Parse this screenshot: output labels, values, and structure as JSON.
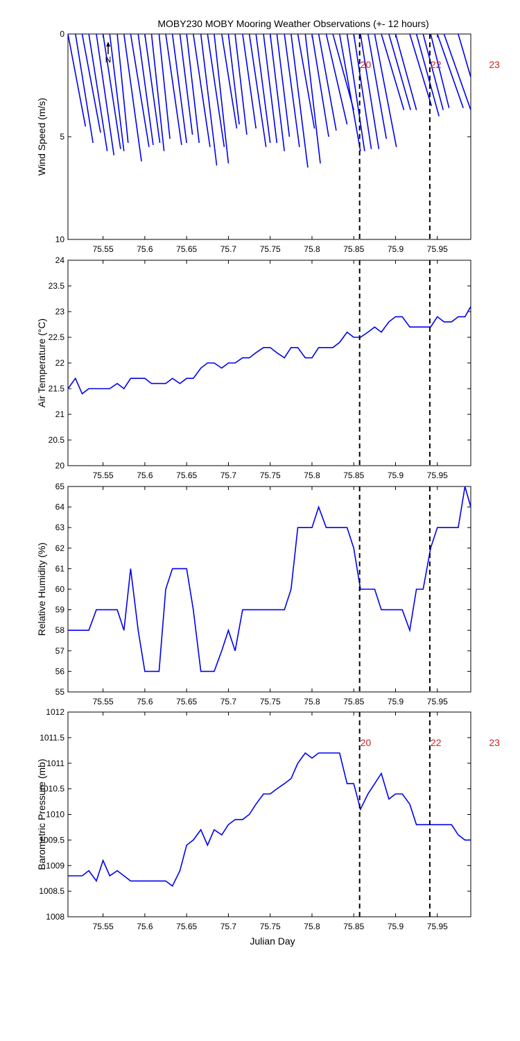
{
  "title": "MOBY230 MOBY Mooring Weather Observations (+- 12 hours)",
  "x_axis": {
    "label": "Julian Day",
    "range": [
      75.508,
      75.99
    ],
    "ticks": [
      75.55,
      75.6,
      75.65,
      75.7,
      75.75,
      75.8,
      75.85,
      75.9,
      75.95
    ],
    "tick_labels": [
      "75.55",
      "75.6",
      "75.65",
      "75.7",
      "75.75",
      "75.8",
      "75.85",
      "75.9",
      "75.95"
    ]
  },
  "colors": {
    "series": "#0000ee",
    "marker_text": "#cc2222",
    "axis": "#000000"
  },
  "markers": {
    "lines_x": [
      75.857,
      75.941
    ],
    "top_labels": [
      {
        "text": "20",
        "x": 75.857
      },
      {
        "text": "22",
        "x": 75.941
      },
      {
        "text": "23",
        "x": 76.011
      }
    ],
    "bottom_labels": [
      {
        "text": "20",
        "x": 75.857
      },
      {
        "text": "22",
        "x": 75.941
      },
      {
        "text": "23",
        "x": 76.011
      }
    ]
  },
  "north_arrow_label": "N",
  "chart_data": [
    {
      "id": "wind",
      "type": "vector",
      "ylabel": "Wind Speed (m/s)",
      "ylim": [
        10,
        0
      ],
      "yticks": [
        0,
        5,
        10
      ],
      "note": "wind sticks from each observation time at speed 0; end point gives direction and speed",
      "vectors": [
        {
          "x": 75.508,
          "x_end": 75.529,
          "speed": 4.5
        },
        {
          "x": 75.517,
          "x_end": 75.538,
          "speed": 5.3
        },
        {
          "x": 75.525,
          "x_end": 75.547,
          "speed": 4.8
        },
        {
          "x": 75.533,
          "x_end": 75.555,
          "speed": 5.7
        },
        {
          "x": 75.542,
          "x_end": 75.563,
          "speed": 5.9
        },
        {
          "x": 75.55,
          "x_end": 75.571,
          "speed": 5.6
        },
        {
          "x": 75.558,
          "x_end": 75.575,
          "speed": 5.7
        },
        {
          "x": 75.567,
          "x_end": 75.58,
          "speed": 5.3
        },
        {
          "x": 75.575,
          "x_end": 75.596,
          "speed": 6.2
        },
        {
          "x": 75.583,
          "x_end": 75.605,
          "speed": 5.5
        },
        {
          "x": 75.592,
          "x_end": 75.61,
          "speed": 5.4
        },
        {
          "x": 75.6,
          "x_end": 75.618,
          "speed": 5.3
        },
        {
          "x": 75.608,
          "x_end": 75.623,
          "speed": 5.7
        },
        {
          "x": 75.617,
          "x_end": 75.63,
          "speed": 5.1
        },
        {
          "x": 75.625,
          "x_end": 75.644,
          "speed": 5.4
        },
        {
          "x": 75.633,
          "x_end": 75.65,
          "speed": 5.3
        },
        {
          "x": 75.642,
          "x_end": 75.657,
          "speed": 4.9
        },
        {
          "x": 75.65,
          "x_end": 75.665,
          "speed": 5.3
        },
        {
          "x": 75.658,
          "x_end": 75.678,
          "speed": 5.5
        },
        {
          "x": 75.667,
          "x_end": 75.686,
          "speed": 6.4
        },
        {
          "x": 75.675,
          "x_end": 75.695,
          "speed": 5.5
        },
        {
          "x": 75.683,
          "x_end": 75.7,
          "speed": 6.3
        },
        {
          "x": 75.692,
          "x_end": 75.71,
          "speed": 4.6
        },
        {
          "x": 75.7,
          "x_end": 75.713,
          "speed": 4.4
        },
        {
          "x": 75.708,
          "x_end": 75.722,
          "speed": 4.9
        },
        {
          "x": 75.717,
          "x_end": 75.733,
          "speed": 4.6
        },
        {
          "x": 75.725,
          "x_end": 75.745,
          "speed": 5.5
        },
        {
          "x": 75.733,
          "x_end": 75.75,
          "speed": 5.3
        },
        {
          "x": 75.742,
          "x_end": 75.758,
          "speed": 5.3
        },
        {
          "x": 75.75,
          "x_end": 75.767,
          "speed": 5.7
        },
        {
          "x": 75.758,
          "x_end": 75.773,
          "speed": 5.0
        },
        {
          "x": 75.767,
          "x_end": 75.785,
          "speed": 5.5
        },
        {
          "x": 75.775,
          "x_end": 75.795,
          "speed": 6.5
        },
        {
          "x": 75.783,
          "x_end": 75.803,
          "speed": 4.6
        },
        {
          "x": 75.792,
          "x_end": 75.81,
          "speed": 6.3
        },
        {
          "x": 75.8,
          "x_end": 75.82,
          "speed": 5.0
        },
        {
          "x": 75.808,
          "x_end": 75.829,
          "speed": 4.7
        },
        {
          "x": 75.817,
          "x_end": 75.842,
          "speed": 4.4
        },
        {
          "x": 75.825,
          "x_end": 75.85,
          "speed": 3.7
        },
        {
          "x": 75.833,
          "x_end": 75.858,
          "speed": 5.7
        },
        {
          "x": 75.842,
          "x_end": 75.863,
          "speed": 5.7
        },
        {
          "x": 75.85,
          "x_end": 75.871,
          "speed": 5.6
        },
        {
          "x": 75.858,
          "x_end": 75.88,
          "speed": 5.6
        },
        {
          "x": 75.867,
          "x_end": 75.889,
          "speed": 5.1
        },
        {
          "x": 75.875,
          "x_end": 75.901,
          "speed": 5.5
        },
        {
          "x": 75.883,
          "x_end": 75.91,
          "speed": 3.7
        },
        {
          "x": 75.892,
          "x_end": 75.918,
          "speed": 3.7
        },
        {
          "x": 75.9,
          "x_end": 75.925,
          "speed": 3.7
        },
        {
          "x": 75.917,
          "x_end": 75.943,
          "speed": 3.5
        },
        {
          "x": 75.925,
          "x_end": 75.952,
          "speed": 4.0
        },
        {
          "x": 75.933,
          "x_end": 75.957,
          "speed": 3.7
        },
        {
          "x": 75.942,
          "x_end": 75.964,
          "speed": 3.6
        },
        {
          "x": 75.95,
          "x_end": 75.981,
          "speed": 3.6
        },
        {
          "x": 75.958,
          "x_end": 75.99,
          "speed": 3.7
        },
        {
          "x": 75.975,
          "x_end": 75.99,
          "speed": 2.1
        }
      ]
    },
    {
      "id": "air_temperature",
      "type": "line",
      "ylabel": "Air Temperature (°C)",
      "ylim": [
        20,
        24
      ],
      "yticks": [
        20,
        20.5,
        21,
        21.5,
        22,
        22.5,
        23,
        23.5,
        24
      ],
      "x": [
        75.508,
        75.517,
        75.525,
        75.533,
        75.542,
        75.55,
        75.558,
        75.567,
        75.575,
        75.583,
        75.592,
        75.6,
        75.608,
        75.617,
        75.625,
        75.633,
        75.642,
        75.65,
        75.658,
        75.667,
        75.675,
        75.683,
        75.692,
        75.7,
        75.708,
        75.717,
        75.725,
        75.733,
        75.742,
        75.75,
        75.758,
        75.767,
        75.775,
        75.783,
        75.792,
        75.8,
        75.808,
        75.817,
        75.825,
        75.833,
        75.842,
        75.85,
        75.858,
        75.867,
        75.875,
        75.883,
        75.892,
        75.9,
        75.908,
        75.917,
        75.925,
        75.933,
        75.942,
        75.95,
        75.958,
        75.967,
        75.975,
        75.983,
        75.99
      ],
      "values": [
        21.5,
        21.7,
        21.4,
        21.5,
        21.5,
        21.5,
        21.5,
        21.6,
        21.5,
        21.7,
        21.7,
        21.7,
        21.6,
        21.6,
        21.6,
        21.7,
        21.6,
        21.7,
        21.7,
        21.9,
        22.0,
        22.0,
        21.9,
        22.0,
        22.0,
        22.1,
        22.1,
        22.2,
        22.3,
        22.3,
        22.2,
        22.1,
        22.3,
        22.3,
        22.1,
        22.1,
        22.3,
        22.3,
        22.3,
        22.4,
        22.6,
        22.5,
        22.5,
        22.6,
        22.7,
        22.6,
        22.8,
        22.9,
        22.9,
        22.7,
        22.7,
        22.7,
        22.7,
        22.9,
        22.8,
        22.8,
        22.9,
        22.9,
        23.1
      ]
    },
    {
      "id": "relative_humidity",
      "type": "line",
      "ylabel": "Relative Humidity (%)",
      "ylim": [
        55,
        65
      ],
      "yticks": [
        55,
        56,
        57,
        58,
        59,
        60,
        61,
        62,
        63,
        64,
        65
      ],
      "x": [
        75.508,
        75.517,
        75.525,
        75.533,
        75.542,
        75.55,
        75.558,
        75.567,
        75.575,
        75.583,
        75.592,
        75.6,
        75.608,
        75.617,
        75.625,
        75.633,
        75.642,
        75.65,
        75.658,
        75.667,
        75.675,
        75.683,
        75.692,
        75.7,
        75.708,
        75.717,
        75.725,
        75.733,
        75.742,
        75.75,
        75.758,
        75.767,
        75.775,
        75.783,
        75.792,
        75.8,
        75.808,
        75.817,
        75.825,
        75.833,
        75.842,
        75.85,
        75.858,
        75.867,
        75.875,
        75.883,
        75.892,
        75.9,
        75.908,
        75.917,
        75.925,
        75.933,
        75.942,
        75.95,
        75.958,
        75.967,
        75.975,
        75.983,
        75.99
      ],
      "values": [
        58,
        58,
        58,
        58,
        59,
        59,
        59,
        59,
        58,
        61,
        58,
        56,
        56,
        56,
        60,
        61,
        61,
        61,
        59,
        56,
        56,
        56,
        57,
        58,
        57,
        59,
        59,
        59,
        59,
        59,
        59,
        59,
        60,
        63,
        63,
        63,
        64,
        63,
        63,
        63,
        63,
        62,
        60,
        60,
        60,
        59,
        59,
        59,
        59,
        58,
        60,
        60,
        62,
        63,
        63,
        63,
        63,
        65,
        64
      ]
    },
    {
      "id": "barometric_pressure",
      "type": "line",
      "ylabel": "Barometric Pressure (mb)",
      "ylim": [
        1008,
        1012
      ],
      "yticks": [
        1008,
        1008.5,
        1009,
        1009.5,
        1010,
        1010.5,
        1011,
        1011.5,
        1012
      ],
      "x": [
        75.508,
        75.517,
        75.525,
        75.533,
        75.542,
        75.55,
        75.558,
        75.567,
        75.575,
        75.583,
        75.592,
        75.6,
        75.608,
        75.617,
        75.625,
        75.633,
        75.642,
        75.65,
        75.658,
        75.667,
        75.675,
        75.683,
        75.692,
        75.7,
        75.708,
        75.717,
        75.725,
        75.733,
        75.742,
        75.75,
        75.758,
        75.767,
        75.775,
        75.783,
        75.792,
        75.8,
        75.808,
        75.817,
        75.825,
        75.833,
        75.842,
        75.85,
        75.858,
        75.867,
        75.875,
        75.883,
        75.892,
        75.9,
        75.908,
        75.917,
        75.925,
        75.933,
        75.942,
        75.95,
        75.958,
        75.967,
        75.975,
        75.983,
        75.99
      ],
      "values": [
        1008.8,
        1008.8,
        1008.8,
        1008.9,
        1008.7,
        1009.1,
        1008.8,
        1008.9,
        1008.8,
        1008.7,
        1008.7,
        1008.7,
        1008.7,
        1008.7,
        1008.7,
        1008.6,
        1008.9,
        1009.4,
        1009.5,
        1009.7,
        1009.4,
        1009.7,
        1009.6,
        1009.8,
        1009.9,
        1009.9,
        1010.0,
        1010.2,
        1010.4,
        1010.4,
        1010.5,
        1010.6,
        1010.7,
        1011.0,
        1011.2,
        1011.1,
        1011.2,
        1011.2,
        1011.2,
        1011.2,
        1010.6,
        1010.6,
        1010.1,
        1010.4,
        1010.6,
        1010.8,
        1010.3,
        1010.4,
        1010.4,
        1010.2,
        1009.8,
        1009.8,
        1009.8,
        1009.8,
        1009.8,
        1009.8,
        1009.6,
        1009.5,
        1009.5
      ]
    }
  ]
}
